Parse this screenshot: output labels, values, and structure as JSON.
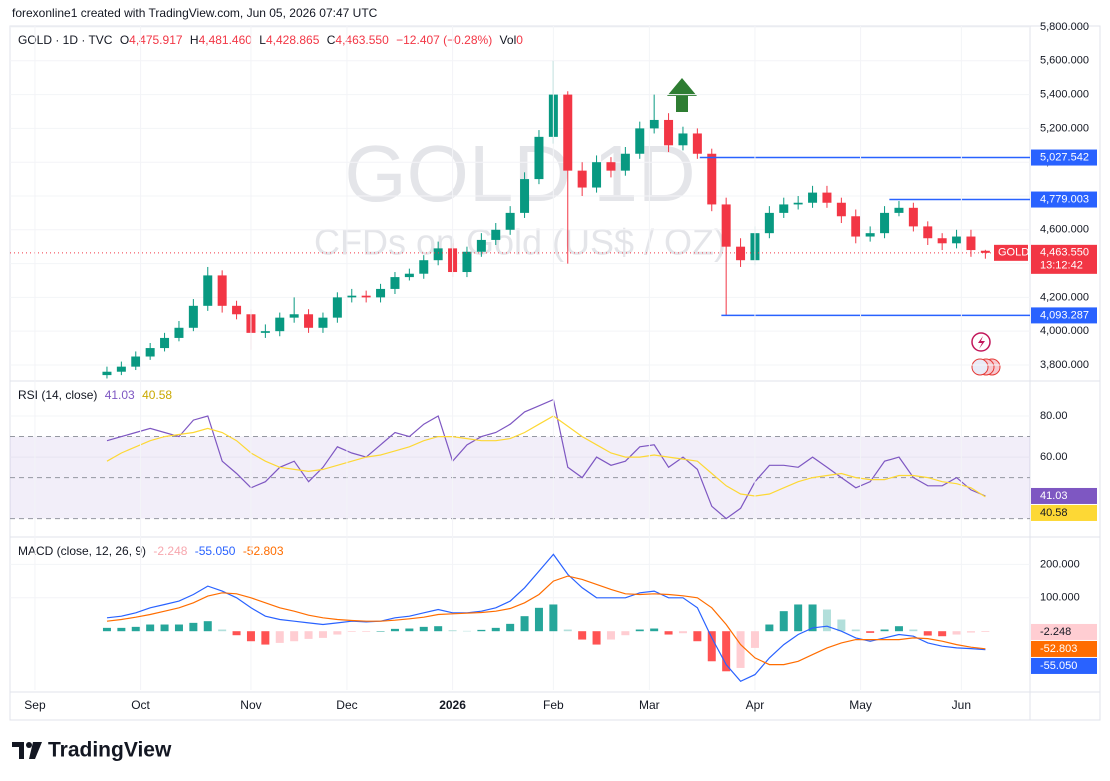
{
  "header": {
    "credit": "forexonline1 created with TradingView.com, Jun 05, 2026 07:47 UTC"
  },
  "footer": {
    "brand": "TradingView"
  },
  "chart_data": [
    {
      "type": "candlestick",
      "symbol": "GOLD · 1D · TVC",
      "ohlc_legend": {
        "open_key": "O",
        "open": "4,475.917",
        "high_key": "H",
        "high": "4,481.460",
        "low_key": "L",
        "low": "4,428.865",
        "close_key": "C",
        "close": "4,463.550",
        "change": "−12.407 (−0.28%)",
        "volume_key": "Vol",
        "volume": "0"
      },
      "watermark": "GOLD 1D",
      "watermark_sub": "CFDs on Gold (US$ / OZ)",
      "x": [
        15,
        18,
        21,
        24,
        27,
        30,
        33,
        36,
        39,
        42,
        45,
        48,
        51,
        54,
        57,
        60,
        63,
        66,
        69,
        72,
        75,
        78,
        81,
        84,
        87,
        90,
        93,
        96,
        99,
        102,
        105,
        108,
        111,
        114,
        117,
        120,
        123,
        126,
        129,
        132,
        135,
        138,
        141,
        144,
        147,
        150,
        153,
        156,
        159,
        162,
        165,
        168,
        171,
        174,
        177,
        180,
        183,
        186,
        189,
        192,
        195,
        198
      ],
      "open": [
        3740,
        3760,
        3790,
        3850,
        3900,
        3960,
        4020,
        4150,
        4330,
        4150,
        4100,
        3990,
        4000,
        4080,
        4100,
        4020,
        4080,
        4200,
        4210,
        4200,
        4250,
        4320,
        4340,
        4420,
        4490,
        4350,
        4470,
        4540,
        4600,
        4700,
        4900,
        5150,
        5400,
        4950,
        4850,
        5000,
        4950,
        5050,
        5200,
        5250,
        5100,
        5170,
        5050,
        4750,
        4500,
        4420,
        4580,
        4700,
        4750,
        4760,
        4820,
        4760,
        4680,
        4560,
        4580,
        4700,
        4730,
        4620,
        4550,
        4520,
        4560,
        4475.917
      ],
      "high": [
        3790,
        3820,
        3880,
        3930,
        3990,
        4060,
        4190,
        4380,
        4360,
        4180,
        4130,
        4040,
        4110,
        4200,
        4130,
        4110,
        4230,
        4250,
        4240,
        4280,
        4350,
        4370,
        4450,
        4530,
        4520,
        4500,
        4580,
        4640,
        4740,
        4940,
        5190,
        5600,
        5420,
        5000,
        5040,
        5030,
        5090,
        5240,
        5400,
        5290,
        5210,
        5200,
        5080,
        4790,
        4550,
        4620,
        4740,
        4790,
        4800,
        4860,
        4860,
        4790,
        4720,
        4620,
        4740,
        4770,
        4760,
        4650,
        4580,
        4600,
        4600,
        4481.46
      ],
      "low": [
        3720,
        3740,
        3770,
        3830,
        3880,
        3940,
        4000,
        4120,
        4110,
        4070,
        3890,
        3960,
        3970,
        4050,
        3990,
        3990,
        4050,
        4170,
        4170,
        4170,
        4220,
        4300,
        4310,
        4390,
        4320,
        4320,
        4440,
        4510,
        4570,
        4670,
        4870,
        5110,
        4400,
        4800,
        4820,
        4910,
        4920,
        5020,
        5170,
        5060,
        5070,
        5020,
        4710,
        4090,
        4380,
        4390,
        4550,
        4670,
        4720,
        4730,
        4730,
        4640,
        4520,
        4530,
        4550,
        4680,
        4590,
        4510,
        4480,
        4490,
        4440,
        4428.865
      ],
      "close": [
        3760,
        3790,
        3850,
        3900,
        3960,
        4020,
        4150,
        4330,
        4150,
        4100,
        3990,
        4000,
        4080,
        4100,
        4020,
        4080,
        4200,
        4210,
        4200,
        4250,
        4320,
        4340,
        4420,
        4490,
        4350,
        4470,
        4540,
        4600,
        4700,
        4900,
        5150,
        5400,
        4950,
        4850,
        5000,
        4950,
        5050,
        5200,
        5250,
        5100,
        5170,
        5050,
        4750,
        4500,
        4420,
        4580,
        4700,
        4750,
        4760,
        4820,
        4760,
        4680,
        4560,
        4580,
        4700,
        4730,
        4620,
        4550,
        4520,
        4560,
        4480,
        4463.55
      ],
      "up_color": "#089981",
      "down_color": "#f23645",
      "xlim": [
        -5.2,
        207.3
      ],
      "ylim": [
        3711,
        5806
      ],
      "yticks": [
        {
          "value": 3800,
          "label": "3,800.000"
        },
        {
          "value": 4000,
          "label": "4,000.000"
        },
        {
          "value": 4200,
          "label": "4,200.000"
        },
        {
          "value": 4400,
          "label": "4,400.000"
        },
        {
          "value": 4600,
          "label": "4,600.000"
        },
        {
          "value": 4800,
          "label": "4,800.000"
        },
        {
          "value": 5000,
          "label": "5,000.000"
        },
        {
          "value": 5200,
          "label": "5,200.000"
        },
        {
          "value": 5400,
          "label": "5,400.000"
        },
        {
          "value": 5600,
          "label": "5,600.000"
        },
        {
          "value": 5800,
          "label": "5,800.000"
        }
      ],
      "level_color": "#2962ff",
      "levels": [
        {
          "from": 138.5,
          "value": 5027.542,
          "label": "5,027.542"
        },
        {
          "from": 178,
          "value": 4779.003,
          "label": "4,779.003"
        },
        {
          "from": 143,
          "value": 4093.287,
          "label": "4,093.287"
        }
      ],
      "last_price": {
        "symbol": "GOLD",
        "value": 4463.55,
        "label": "4,463.550",
        "countdown": "13:12:42",
        "color": "#f23645"
      }
    },
    {
      "type": "line",
      "title": "RSI (14, close)",
      "x": [
        15,
        18,
        21,
        24,
        27,
        30,
        33,
        36,
        39,
        42,
        45,
        48,
        51,
        54,
        57,
        60,
        63,
        66,
        69,
        72,
        75,
        78,
        81,
        84,
        87,
        90,
        93,
        96,
        99,
        102,
        105,
        108,
        111,
        114,
        117,
        120,
        123,
        126,
        129,
        132,
        135,
        138,
        141,
        144,
        147,
        150,
        153,
        156,
        159,
        162,
        165,
        168,
        171,
        174,
        177,
        180,
        183,
        186,
        189,
        192,
        195,
        198
      ],
      "xlim": [
        -5.2,
        207.3
      ],
      "ylim": [
        22,
        96.6
      ],
      "yticks": [
        {
          "value": 80,
          "label": "80.00"
        },
        {
          "value": 60,
          "label": "60.00"
        }
      ],
      "bands": [
        70,
        50,
        30
      ],
      "band_fill": "#7e57c2",
      "series": [
        {
          "color": "#7e57c2",
          "values": [
            68,
            70,
            72,
            74,
            72,
            70,
            78,
            80,
            58,
            52,
            45,
            48,
            55,
            58,
            48,
            55,
            65,
            62,
            60,
            66,
            72,
            70,
            76,
            80,
            58,
            66,
            70,
            72,
            76,
            82,
            85,
            88,
            55,
            50,
            60,
            56,
            58,
            65,
            66,
            55,
            60,
            54,
            36,
            30,
            35,
            48,
            56,
            56,
            55,
            60,
            55,
            50,
            45,
            48,
            58,
            60,
            50,
            46,
            46,
            50,
            44,
            41.03
          ]
        },
        {
          "color": "#fdd835",
          "values": [
            58,
            62,
            65,
            68,
            70,
            71,
            72,
            74,
            72,
            68,
            62,
            58,
            55,
            54,
            53,
            54,
            56,
            58,
            60,
            61,
            63,
            65,
            68,
            70,
            70,
            69,
            68,
            68,
            69,
            72,
            76,
            80,
            75,
            70,
            66,
            62,
            60,
            60,
            61,
            60,
            59,
            58,
            52,
            46,
            42,
            41,
            42,
            45,
            48,
            50,
            51,
            52,
            50,
            49,
            49,
            51,
            51,
            50,
            48,
            47,
            45,
            40.58
          ]
        }
      ]
    },
    {
      "type": "macd",
      "title": "MACD (close, 12, 26, 9)",
      "x": [
        15,
        18,
        21,
        24,
        27,
        30,
        33,
        36,
        39,
        42,
        45,
        48,
        51,
        54,
        57,
        60,
        63,
        66,
        69,
        72,
        75,
        78,
        81,
        84,
        87,
        90,
        93,
        96,
        99,
        102,
        105,
        108,
        111,
        114,
        117,
        120,
        123,
        126,
        129,
        132,
        135,
        138,
        141,
        144,
        147,
        150,
        153,
        156,
        159,
        162,
        165,
        168,
        171,
        174,
        177,
        180,
        183,
        186,
        189,
        192,
        195,
        198
      ],
      "xlim": [
        -5.2,
        207.3
      ],
      "xticks": [
        {
          "value": 0,
          "label": "Sep"
        },
        {
          "value": 22,
          "label": "Oct"
        },
        {
          "value": 45,
          "label": "Nov"
        },
        {
          "value": 65,
          "label": "Dec"
        },
        {
          "value": 87,
          "label": "2026"
        },
        {
          "value": 108,
          "label": "Feb"
        },
        {
          "value": 128,
          "label": "Mar"
        },
        {
          "value": 150,
          "label": "Apr"
        },
        {
          "value": 172,
          "label": "May"
        },
        {
          "value": 193,
          "label": "Jun"
        }
      ],
      "ylim": [
        -176,
        279
      ],
      "yticks": [
        {
          "value": 200,
          "label": "200.000"
        },
        {
          "value": 100,
          "label": "100.000"
        }
      ],
      "histogram": {
        "colors": [
          "#26a69a",
          "#b2dfdb",
          "#ffcdd2",
          "#ff5252"
        ],
        "values": [
          10,
          10,
          13,
          20,
          20,
          20,
          25,
          30,
          5,
          -12,
          -30,
          -40,
          -35,
          -30,
          -23,
          -20,
          -10,
          -2,
          -2,
          0,
          7,
          8,
          13,
          15,
          3,
          1,
          4,
          10,
          22,
          45,
          70,
          80,
          5,
          -25,
          -40,
          -25,
          -12,
          5,
          8,
          -10,
          -6,
          -30,
          -90,
          -120,
          -110,
          -50,
          20,
          60,
          80,
          80,
          65,
          35,
          5,
          -5,
          5,
          15,
          5,
          -13,
          -15,
          -10,
          -4,
          -2.248
        ]
      },
      "series": [
        {
          "color": "#2962ff",
          "last_label": "-55.050",
          "values": [
            40,
            45,
            55,
            70,
            80,
            90,
            110,
            135,
            120,
            100,
            70,
            45,
            35,
            30,
            25,
            20,
            25,
            30,
            28,
            30,
            40,
            45,
            55,
            65,
            55,
            55,
            60,
            70,
            90,
            130,
            180,
            230,
            170,
            130,
            100,
            100,
            100,
            115,
            120,
            100,
            100,
            70,
            -20,
            -100,
            -150,
            -130,
            -80,
            -40,
            -10,
            10,
            15,
            0,
            -20,
            -30,
            -20,
            -10,
            -15,
            -35,
            -45,
            -50,
            -52,
            -55.05
          ]
        },
        {
          "color": "#ff6d00",
          "values": [
            30,
            35,
            42,
            50,
            60,
            70,
            85,
            105,
            115,
            112,
            100,
            85,
            70,
            60,
            48,
            40,
            35,
            32,
            30,
            30,
            33,
            37,
            42,
            50,
            52,
            54,
            56,
            60,
            68,
            85,
            110,
            150,
            165,
            155,
            140,
            125,
            112,
            110,
            112,
            110,
            106,
            100,
            70,
            20,
            -40,
            -80,
            -100,
            -100,
            -90,
            -70,
            -50,
            -35,
            -25,
            -25,
            -25,
            -25,
            -20,
            -22,
            -30,
            -40,
            -48,
            -52.803
          ]
        }
      ]
    }
  ]
}
